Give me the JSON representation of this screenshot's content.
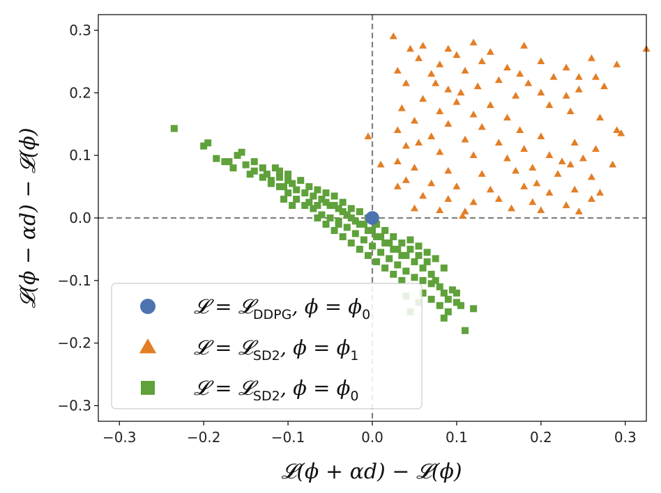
{
  "chart_data": {
    "type": "scatter",
    "xlabel": "𝓛(ϕ + αd) − 𝓛(ϕ)",
    "ylabel": "𝓛(ϕ − αd) − 𝓛(ϕ)",
    "xlim": [
      -0.325,
      0.325
    ],
    "ylim": [
      -0.325,
      0.325
    ],
    "xticks": [
      -0.3,
      -0.2,
      -0.1,
      0.0,
      0.1,
      0.2,
      0.3
    ],
    "yticks": [
      -0.3,
      -0.2,
      -0.1,
      0.0,
      0.1,
      0.2,
      0.3
    ],
    "xtick_labels": [
      "−0.3",
      "−0.2",
      "−0.1",
      "0.0",
      "0.1",
      "0.2",
      "0.3"
    ],
    "ytick_labels": [
      "−0.3",
      "−0.2",
      "−0.1",
      "0.0",
      "0.1",
      "0.2",
      "0.3"
    ],
    "reference_lines": {
      "x": 0.0,
      "y": 0.0,
      "style": "dashed",
      "color": "#808080"
    },
    "legend_position": "lower-left",
    "series": [
      {
        "name": "ddpg-phi0",
        "legend_label": {
          "main": "𝓛 = 𝓛",
          "sub": "DDPG",
          "tail": ", ϕ = ϕ",
          "tail_sub": "0"
        },
        "marker": "circle",
        "color": "#4c72b0",
        "points": [
          [
            0.0,
            0.0
          ]
        ]
      },
      {
        "name": "sd2-phi1",
        "legend_label": {
          "main": "𝓛 = 𝓛",
          "sub": "SD2",
          "tail": ", ϕ = ϕ",
          "tail_sub": "1"
        },
        "marker": "triangle",
        "color": "#e37e26",
        "points": [
          [
            0.025,
            0.29
          ],
          [
            0.06,
            0.275
          ],
          [
            0.09,
            0.27
          ],
          [
            0.12,
            0.28
          ],
          [
            0.18,
            0.275
          ],
          [
            0.26,
            0.255
          ],
          [
            0.29,
            0.245
          ],
          [
            0.325,
            0.27
          ],
          [
            0.055,
            0.255
          ],
          [
            0.1,
            0.26
          ],
          [
            0.14,
            0.265
          ],
          [
            0.2,
            0.25
          ],
          [
            0.23,
            0.24
          ],
          [
            0.08,
            0.245
          ],
          [
            0.16,
            0.24
          ],
          [
            0.275,
            0.21
          ],
          [
            0.03,
            0.235
          ],
          [
            0.07,
            0.23
          ],
          [
            0.11,
            0.235
          ],
          [
            0.15,
            0.22
          ],
          [
            0.185,
            0.215
          ],
          [
            0.215,
            0.225
          ],
          [
            0.245,
            0.225
          ],
          [
            0.245,
            0.205
          ],
          [
            0.04,
            0.215
          ],
          [
            0.09,
            0.205
          ],
          [
            0.125,
            0.21
          ],
          [
            0.17,
            0.195
          ],
          [
            0.2,
            0.2
          ],
          [
            0.06,
            0.19
          ],
          [
            0.1,
            0.185
          ],
          [
            0.14,
            0.18
          ],
          [
            0.035,
            0.175
          ],
          [
            0.08,
            0.17
          ],
          [
            0.12,
            0.165
          ],
          [
            0.16,
            0.16
          ],
          [
            0.21,
            0.18
          ],
          [
            0.235,
            0.17
          ],
          [
            0.27,
            0.16
          ],
          [
            0.05,
            0.155
          ],
          [
            0.09,
            0.15
          ],
          [
            0.13,
            0.145
          ],
          [
            0.175,
            0.14
          ],
          [
            0.29,
            0.14
          ],
          [
            0.295,
            0.135
          ],
          [
            0.03,
            0.14
          ],
          [
            0.07,
            0.13
          ],
          [
            0.11,
            0.125
          ],
          [
            0.15,
            0.12
          ],
          [
            0.2,
            0.13
          ],
          [
            0.24,
            0.12
          ],
          [
            0.265,
            0.11
          ],
          [
            0.04,
            0.115
          ],
          [
            0.08,
            0.105
          ],
          [
            0.12,
            0.1
          ],
          [
            0.16,
            0.095
          ],
          [
            0.21,
            0.1
          ],
          [
            0.25,
            0.095
          ],
          [
            0.285,
            0.085
          ],
          [
            -0.005,
            0.13
          ],
          [
            0.01,
            0.085
          ],
          [
            0.03,
            0.09
          ],
          [
            0.05,
            0.08
          ],
          [
            0.09,
            0.075
          ],
          [
            0.13,
            0.07
          ],
          [
            0.17,
            0.075
          ],
          [
            0.19,
            0.08
          ],
          [
            0.22,
            0.07
          ],
          [
            0.26,
            0.065
          ],
          [
            0.04,
            0.06
          ],
          [
            0.07,
            0.055
          ],
          [
            0.1,
            0.05
          ],
          [
            0.14,
            0.045
          ],
          [
            0.18,
            0.05
          ],
          [
            0.21,
            0.04
          ],
          [
            0.24,
            0.045
          ],
          [
            0.27,
            0.04
          ],
          [
            0.06,
            0.035
          ],
          [
            0.09,
            0.03
          ],
          [
            0.12,
            0.025
          ],
          [
            0.15,
            0.03
          ],
          [
            0.19,
            0.025
          ],
          [
            0.23,
            0.02
          ],
          [
            0.26,
            0.03
          ],
          [
            0.05,
            0.015
          ],
          [
            0.08,
            0.012
          ],
          [
            0.11,
            0.01
          ],
          [
            0.165,
            0.015
          ],
          [
            0.2,
            0.012
          ],
          [
            0.245,
            0.01
          ],
          [
            0.107,
            0.003
          ],
          [
            0.265,
            0.225
          ],
          [
            0.045,
            0.27
          ],
          [
            0.13,
            0.25
          ],
          [
            0.175,
            0.23
          ],
          [
            0.075,
            0.215
          ],
          [
            0.105,
            0.2
          ],
          [
            0.23,
            0.195
          ],
          [
            0.055,
            0.12
          ],
          [
            0.18,
            0.11
          ],
          [
            0.235,
            0.085
          ],
          [
            0.03,
            0.05
          ],
          [
            0.195,
            0.055
          ],
          [
            0.225,
            0.09
          ]
        ]
      },
      {
        "name": "sd2-phi0",
        "legend_label": {
          "main": "𝓛 = 𝓛",
          "sub": "SD2",
          "tail": ", ϕ = ϕ",
          "tail_sub": "0"
        },
        "marker": "square",
        "color": "#5fa13a",
        "points": [
          [
            -0.235,
            0.143
          ],
          [
            -0.195,
            0.12
          ],
          [
            -0.185,
            0.095
          ],
          [
            -0.17,
            0.09
          ],
          [
            -0.16,
            0.1
          ],
          [
            -0.155,
            0.105
          ],
          [
            -0.15,
            0.085
          ],
          [
            -0.14,
            0.075
          ],
          [
            -0.13,
            0.08
          ],
          [
            -0.125,
            0.07
          ],
          [
            -0.12,
            0.06
          ],
          [
            -0.115,
            0.08
          ],
          [
            -0.11,
            0.065
          ],
          [
            -0.105,
            0.05
          ],
          [
            -0.1,
            0.07
          ],
          [
            -0.095,
            0.055
          ],
          [
            -0.09,
            0.045
          ],
          [
            -0.085,
            0.06
          ],
          [
            -0.08,
            0.04
          ],
          [
            -0.075,
            0.05
          ],
          [
            -0.07,
            0.035
          ],
          [
            -0.065,
            0.045
          ],
          [
            -0.06,
            0.03
          ],
          [
            -0.055,
            0.04
          ],
          [
            -0.05,
            0.02
          ],
          [
            -0.045,
            0.035
          ],
          [
            -0.04,
            0.015
          ],
          [
            -0.035,
            0.025
          ],
          [
            -0.03,
            0.005
          ],
          [
            -0.025,
            0.015
          ],
          [
            -0.02,
            -0.005
          ],
          [
            -0.015,
            0.01
          ],
          [
            -0.01,
            -0.01
          ],
          [
            -0.005,
            0.0
          ],
          [
            0.0,
            -0.02
          ],
          [
            0.005,
            -0.01
          ],
          [
            0.01,
            -0.03
          ],
          [
            0.015,
            -0.02
          ],
          [
            0.02,
            -0.04
          ],
          [
            0.025,
            -0.03
          ],
          [
            0.03,
            -0.05
          ],
          [
            0.035,
            -0.04
          ],
          [
            0.04,
            -0.06
          ],
          [
            0.045,
            -0.05
          ],
          [
            0.05,
            -0.07
          ],
          [
            0.055,
            -0.06
          ],
          [
            0.06,
            -0.08
          ],
          [
            0.065,
            -0.07
          ],
          [
            0.07,
            -0.09
          ],
          [
            0.075,
            -0.1
          ],
          [
            0.08,
            -0.11
          ],
          [
            0.085,
            -0.12
          ],
          [
            0.09,
            -0.13
          ],
          [
            0.095,
            -0.115
          ],
          [
            0.1,
            -0.135
          ],
          [
            0.105,
            -0.14
          ],
          [
            0.11,
            -0.18
          ],
          [
            0.12,
            -0.145
          ],
          [
            0.085,
            -0.16
          ],
          [
            0.045,
            -0.15
          ],
          [
            -0.065,
            0.0
          ],
          [
            -0.055,
            -0.01
          ],
          [
            -0.045,
            -0.02
          ],
          [
            -0.035,
            -0.03
          ],
          [
            -0.025,
            -0.04
          ],
          [
            -0.015,
            -0.05
          ],
          [
            -0.005,
            -0.06
          ],
          [
            0.005,
            -0.07
          ],
          [
            0.015,
            -0.08
          ],
          [
            0.025,
            -0.09
          ],
          [
            0.035,
            -0.1
          ],
          [
            -0.08,
            0.02
          ],
          [
            -0.07,
            0.015
          ],
          [
            -0.06,
            0.005
          ],
          [
            -0.04,
            -0.005
          ],
          [
            -0.03,
            -0.015
          ],
          [
            -0.02,
            -0.025
          ],
          [
            -0.01,
            -0.035
          ],
          [
            0.0,
            -0.045
          ],
          [
            0.01,
            -0.055
          ],
          [
            0.02,
            -0.065
          ],
          [
            0.03,
            -0.075
          ],
          [
            0.04,
            -0.085
          ],
          [
            0.05,
            -0.095
          ],
          [
            0.06,
            -0.1
          ],
          [
            0.07,
            -0.105
          ],
          [
            -0.09,
            0.03
          ],
          [
            -0.1,
            0.04
          ],
          [
            -0.11,
            0.05
          ],
          [
            -0.12,
            0.055
          ],
          [
            -0.13,
            0.065
          ],
          [
            -0.14,
            0.09
          ],
          [
            -0.145,
            0.07
          ],
          [
            -0.165,
            0.08
          ],
          [
            -0.175,
            0.09
          ],
          [
            -0.2,
            0.115
          ],
          [
            -0.105,
            0.03
          ],
          [
            -0.095,
            0.02
          ],
          [
            -0.075,
            0.025
          ],
          [
            -0.065,
            0.02
          ],
          [
            -0.05,
            0.0
          ],
          [
            -0.04,
            -0.01
          ],
          [
            0.045,
            -0.035
          ],
          [
            0.055,
            -0.045
          ],
          [
            0.065,
            -0.055
          ],
          [
            0.075,
            -0.065
          ],
          [
            0.085,
            -0.08
          ],
          [
            0.035,
            -0.06
          ],
          [
            0.025,
            -0.05
          ],
          [
            0.015,
            -0.04
          ],
          [
            0.005,
            -0.03
          ],
          [
            -0.005,
            -0.02
          ],
          [
            -0.015,
            -0.01
          ],
          [
            -0.025,
            0.0
          ],
          [
            -0.035,
            0.01
          ],
          [
            -0.045,
            0.02
          ],
          [
            -0.055,
            0.025
          ],
          [
            -0.11,
            0.075
          ],
          [
            -0.1,
            0.06
          ],
          [
            0.06,
            -0.12
          ],
          [
            0.07,
            -0.13
          ],
          [
            0.08,
            -0.14
          ],
          [
            0.09,
            -0.15
          ],
          [
            0.1,
            -0.12
          ],
          [
            0.055,
            -0.135
          ],
          [
            0.04,
            -0.125
          ]
        ]
      }
    ]
  }
}
